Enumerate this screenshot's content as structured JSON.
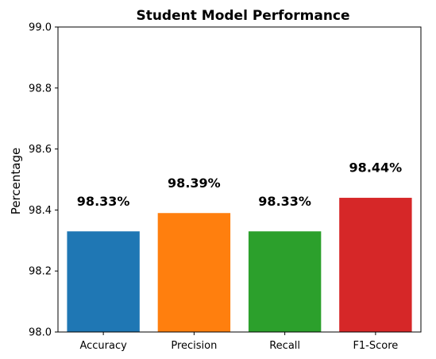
{
  "chart_data": {
    "type": "bar",
    "title": "Student Model Performance",
    "xlabel": "",
    "ylabel": "Percentage",
    "categories": [
      "Accuracy",
      "Precision",
      "Recall",
      "F1-Score"
    ],
    "values": [
      98.33,
      98.39,
      98.33,
      98.44
    ],
    "data_labels": [
      "98.33%",
      "98.39%",
      "98.33%",
      "98.44%"
    ],
    "colors": [
      "#1f77b4",
      "#ff7f0e",
      "#2ca02c",
      "#d62728"
    ],
    "ylim": [
      98.0,
      99.0
    ],
    "yticks": [
      98.0,
      98.2,
      98.4,
      98.6,
      98.8,
      99.0
    ],
    "ytick_labels": [
      "98.0",
      "98.2",
      "98.4",
      "98.6",
      "98.8",
      "99.0"
    ],
    "grid": false,
    "legend": "none"
  }
}
